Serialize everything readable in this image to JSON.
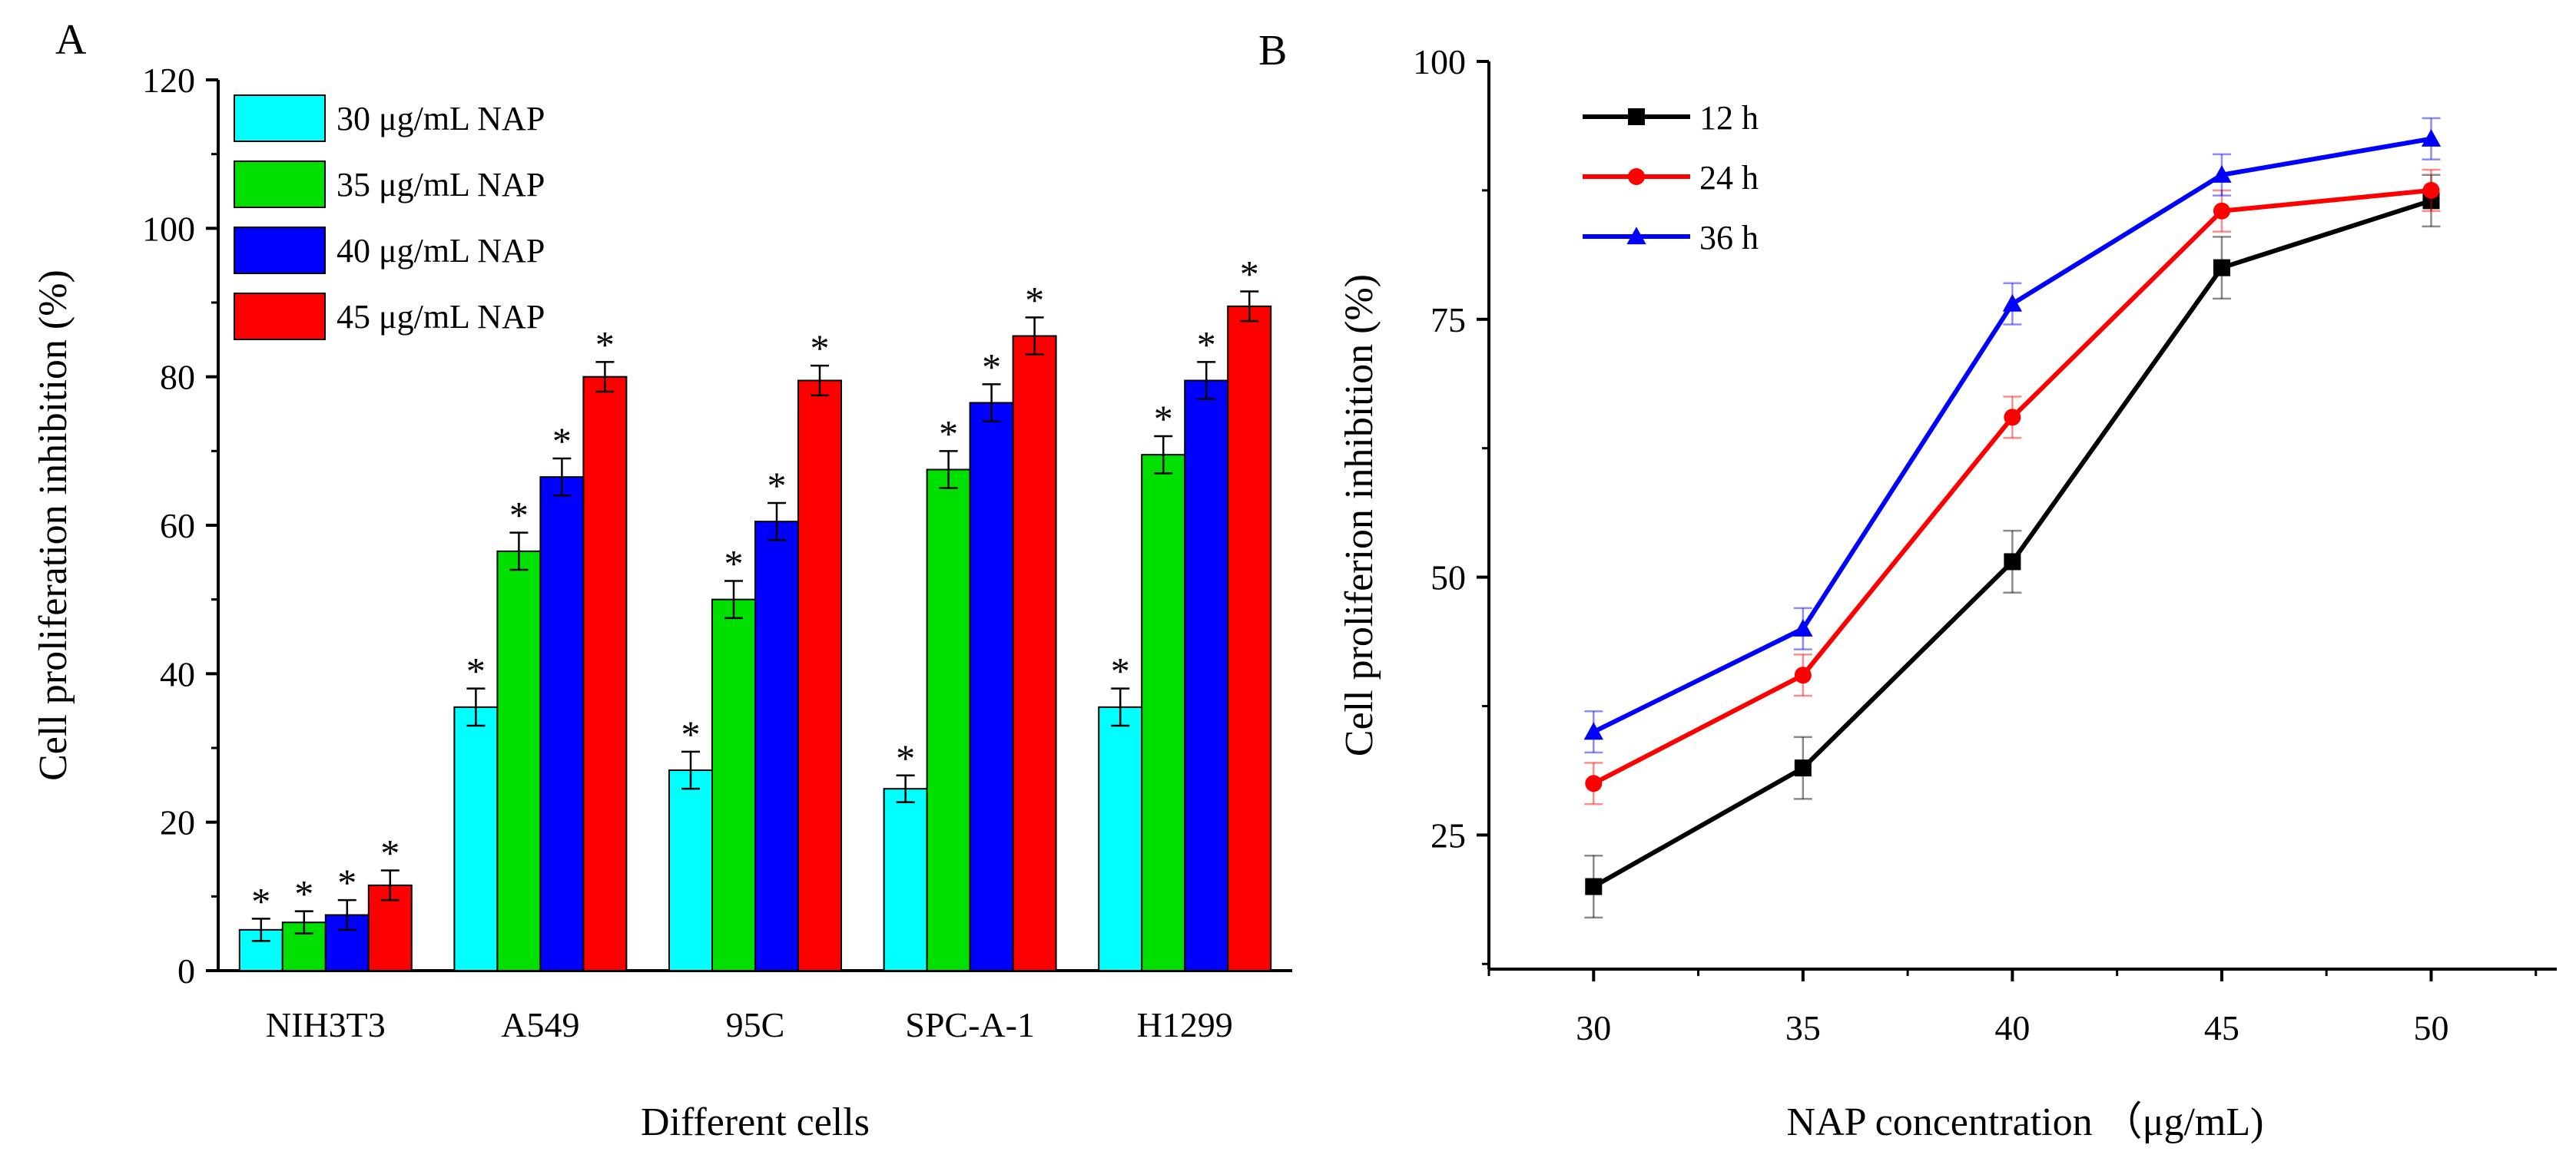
{
  "chart_data": [
    {
      "panel_label": "A",
      "type": "bar",
      "title": "",
      "xlabel": "Different cells",
      "ylabel": "Cell proliferation inhibition (%)",
      "ylim": [
        0,
        120
      ],
      "yticks": [
        "0",
        "20",
        "40",
        "60",
        "80",
        "100",
        "120"
      ],
      "categories": [
        "NIH3T3",
        "A549",
        "95C",
        "SPC-A-1",
        "H1299"
      ],
      "legend_position": "top-left",
      "significance_marker": "*",
      "series": [
        {
          "name": "30 μg/mL NAP",
          "color": "#00ffff",
          "values": [
            5.5,
            35.5,
            27,
            24.5,
            35.5
          ],
          "errors": [
            1.5,
            2.5,
            2.5,
            1.8,
            2.5
          ]
        },
        {
          "name": "35 μg/mL NAP",
          "color": "#00e000",
          "values": [
            6.5,
            56.5,
            50,
            67.5,
            69.5
          ],
          "errors": [
            1.5,
            2.5,
            2.5,
            2.5,
            2.5
          ]
        },
        {
          "name": "40 μg/mL NAP",
          "color": "#0000ff",
          "values": [
            7.5,
            66.5,
            60.5,
            76.5,
            79.5
          ],
          "errors": [
            2.0,
            2.5,
            2.5,
            2.5,
            2.5
          ]
        },
        {
          "name": "45 μg/mL NAP",
          "color": "#ff0000",
          "values": [
            11.5,
            80,
            79.5,
            85.5,
            89.5
          ],
          "errors": [
            2.0,
            2.0,
            2.0,
            2.5,
            2.0
          ]
        }
      ]
    },
    {
      "panel_label": "B",
      "type": "line",
      "title": "",
      "xlabel": "NAP concentration （μg/mL)",
      "ylabel": "Cell proliferion inhibition (%)",
      "ylim": [
        12,
        100
      ],
      "xlim": [
        27.5,
        53
      ],
      "x": [
        30,
        35,
        40,
        45,
        50
      ],
      "xticks": [
        "30",
        "35",
        "40",
        "45",
        "50"
      ],
      "yticks": [
        "25",
        "50",
        "75",
        "100"
      ],
      "ytick_values": [
        25,
        50,
        75,
        100
      ],
      "legend_position": "top-left",
      "series": [
        {
          "name": "12 h",
          "color": "#000000",
          "marker": "square",
          "values": [
            20,
            31.5,
            51.5,
            80,
            86.5
          ],
          "errors": [
            3.0,
            3.0,
            3.0,
            3.0,
            2.5
          ]
        },
        {
          "name": "24 h",
          "color": "#ff0000",
          "marker": "circle",
          "values": [
            30,
            40.5,
            65.5,
            85.5,
            87.5
          ],
          "errors": [
            2.0,
            2.0,
            2.0,
            2.0,
            2.0
          ]
        },
        {
          "name": "36 h",
          "color": "#0000ff",
          "marker": "triangle",
          "values": [
            35,
            45,
            76.5,
            89,
            92.5
          ],
          "errors": [
            2.0,
            2.0,
            2.0,
            2.0,
            2.0
          ]
        }
      ]
    }
  ]
}
